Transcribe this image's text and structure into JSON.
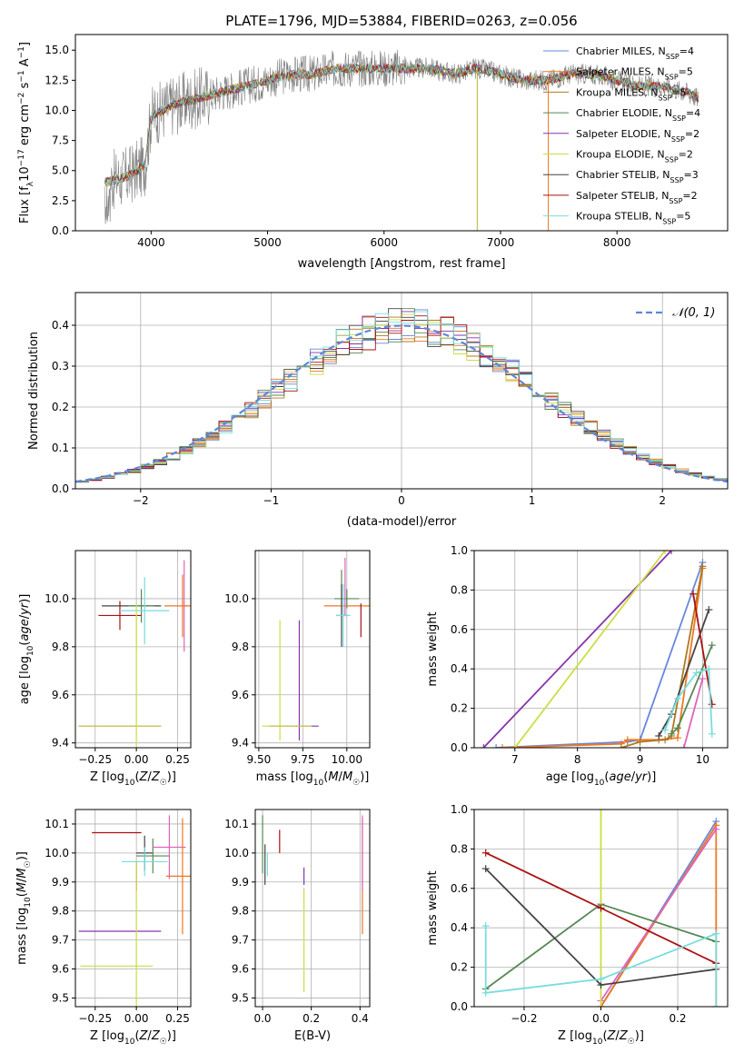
{
  "chart_data": [
    {
      "id": "spectrum",
      "type": "line",
      "title": "PLATE=1796, MJD=53884, FIBERID=0263, z=0.056",
      "xlabel": "wavelength [Angstrom, rest frame]",
      "ylabel": "Flux [f_λ 10^-17 erg cm^-2 s^-1 A^-1]",
      "xlim": [
        3350,
        8950
      ],
      "ylim": [
        0,
        16.3
      ],
      "xticks": [
        4000,
        5000,
        6000,
        7000,
        8000
      ],
      "yticks": [
        0.0,
        2.5,
        5.0,
        7.5,
        10.0,
        12.5,
        15.0
      ],
      "legend_position": "top-right",
      "legend": [
        {
          "name": "Chabrier MILES, N_SSP=4",
          "color": "#6688dd"
        },
        {
          "name": "Salpeter MILES, N_SSP=5",
          "color": "#ee7722"
        },
        {
          "name": "Kroupa MILES, N_SSP=5",
          "color": "#b07820"
        },
        {
          "name": "Chabrier ELODIE, N_SSP=4",
          "color": "#558855"
        },
        {
          "name": "Salpeter ELODIE, N_SSP=2",
          "color": "#8833aa"
        },
        {
          "name": "Kroupa ELODIE, N_SSP=2",
          "color": "#ccdd44"
        },
        {
          "name": "Chabrier STELIB, N_SSP=3",
          "color": "#444444"
        },
        {
          "name": "Salpeter STELIB, N_SSP=2",
          "color": "#aa1111"
        },
        {
          "name": "Kroupa STELIB, N_SSP=5",
          "color": "#77dddd"
        }
      ],
      "data_color": "#808080",
      "model_envelope": {
        "x": [
          3600,
          3800,
          3950,
          4000,
          4200,
          4400,
          4600,
          4800,
          5000,
          5200,
          5400,
          5600,
          5800,
          6000,
          6200,
          6400,
          6600,
          6800,
          7000,
          7200,
          7400,
          7600,
          7800,
          8000,
          8200,
          8400,
          8600,
          8700
        ],
        "y": [
          4.0,
          4.5,
          5.5,
          9.5,
          10.5,
          11.0,
          11.5,
          12.0,
          12.5,
          13.0,
          13.0,
          13.5,
          13.5,
          13.5,
          13.5,
          13.5,
          13.0,
          13.5,
          13.0,
          12.5,
          12.5,
          13.0,
          13.0,
          12.5,
          12.0,
          12.0,
          11.5,
          11.0
        ]
      }
    },
    {
      "id": "residuals",
      "type": "histogram",
      "xlabel": "(data-model)/error",
      "ylabel": "Normed distribution",
      "xlim": [
        -2.5,
        2.5
      ],
      "ylim": [
        0,
        0.48
      ],
      "xticks": [
        -2,
        -1,
        0,
        1,
        2
      ],
      "yticks": [
        0.0,
        0.1,
        0.2,
        0.3,
        0.4
      ],
      "grid": true,
      "legend_position": "top-right",
      "reference_curve": {
        "name": "𝒩(0, 1)",
        "color": "#5b88d8"
      },
      "bins": 50
    },
    {
      "id": "age-vs-Z",
      "type": "scatter",
      "xlabel": "Z [log10(Z/Z_☉)]",
      "ylabel": "age  [log10(age/yr)]",
      "xlim": [
        -0.37,
        0.33
      ],
      "ylim": [
        9.38,
        10.2
      ],
      "xticks": [
        -0.25,
        0.0,
        0.25
      ],
      "yticks": [
        9.4,
        9.6,
        9.8,
        10.0
      ],
      "grid": true,
      "points": [
        {
          "x": -0.03,
          "y": 9.97,
          "xerr": 0.18,
          "yerr": 0.0,
          "color": "#444444"
        },
        {
          "x": 0.03,
          "y": 9.97,
          "xerr": 0.08,
          "yerr": 0.07,
          "color": "#558855"
        },
        {
          "x": -0.1,
          "y": 9.93,
          "xerr": 0.13,
          "yerr": 0.06,
          "color": "#aa1111"
        },
        {
          "x": 0.29,
          "y": 9.97,
          "xerr": 0.02,
          "yerr": 0.19,
          "color": "#dd66bb"
        },
        {
          "x": 0.28,
          "y": 9.97,
          "xerr": 0.11,
          "yerr": 0.13,
          "color": "#ee7722"
        },
        {
          "x": 0.05,
          "y": 9.95,
          "xerr": 0.15,
          "yerr": 0.14,
          "color": "#77dddd"
        },
        {
          "x": 0.0,
          "y": 9.88,
          "xerr": 0.0,
          "yerr": 0.1,
          "color": "#ccdd44"
        },
        {
          "x": -0.1,
          "y": 9.47,
          "xerr": 0.25,
          "yerr": 0.0,
          "color": "#8833aa"
        },
        {
          "x": -0.1,
          "y": 9.47,
          "xerr": 0.25,
          "yerr": 0.0,
          "color": "#ccdd44"
        },
        {
          "x": 0.0,
          "y": 9.65,
          "xerr": 0.0,
          "yerr": 0.28,
          "color": "#ccdd44"
        }
      ]
    },
    {
      "id": "age-vs-mass",
      "type": "scatter",
      "xlabel": "mass [log10(M/M_☉)]",
      "ylabel": "",
      "xlim": [
        9.48,
        10.13
      ],
      "ylim": [
        9.38,
        10.2
      ],
      "xticks": [
        9.5,
        9.75,
        10.0
      ],
      "yticks": [
        9.4,
        9.6,
        9.8,
        10.0
      ],
      "grid": true,
      "points": [
        {
          "x": 9.97,
          "y": 10.03,
          "xerr": 0.0,
          "yerr": 0.09,
          "color": "#558855"
        },
        {
          "x": 10.0,
          "y": 10.0,
          "xerr": 0.07,
          "yerr": 0.04,
          "color": "#558855"
        },
        {
          "x": 10.0,
          "y": 9.97,
          "xerr": 0.13,
          "yerr": 0.0,
          "color": "#ee7722"
        },
        {
          "x": 9.99,
          "y": 10.05,
          "xerr": 0.0,
          "yerr": 0.12,
          "color": "#dd66bb"
        },
        {
          "x": 10.08,
          "y": 9.91,
          "xerr": 0.0,
          "yerr": 0.07,
          "color": "#aa1111"
        },
        {
          "x": 9.97,
          "y": 9.93,
          "xerr": 0.03,
          "yerr": 0.13,
          "color": "#444444"
        },
        {
          "x": 9.98,
          "y": 9.93,
          "xerr": 0.04,
          "yerr": 0.13,
          "color": "#77dddd"
        },
        {
          "x": 9.73,
          "y": 9.66,
          "xerr": 0.0,
          "yerr": 0.25,
          "color": "#8833aa"
        },
        {
          "x": 9.62,
          "y": 9.66,
          "xerr": 0.0,
          "yerr": 0.25,
          "color": "#ccdd44"
        },
        {
          "x": 9.7,
          "y": 9.47,
          "xerr": 0.14,
          "yerr": 0.0,
          "color": "#8833aa"
        },
        {
          "x": 9.66,
          "y": 9.47,
          "xerr": 0.14,
          "yerr": 0.0,
          "color": "#ccdd44"
        }
      ]
    },
    {
      "id": "weight-vs-age",
      "type": "line",
      "xlabel": "age  [log10(age/yr)]",
      "ylabel": "mass weight",
      "xlim": [
        6.35,
        10.4
      ],
      "ylim": [
        0,
        1.0
      ],
      "xticks": [
        7,
        8,
        9,
        10
      ],
      "yticks": [
        0.0,
        0.2,
        0.4,
        0.6,
        0.8,
        1.0
      ],
      "grid": true,
      "series": [
        {
          "color": "#6688dd",
          "x": [
            6.7,
            8.8,
            9.0,
            10.0
          ],
          "y": [
            0.0,
            0.03,
            0.04,
            0.94
          ]
        },
        {
          "color": "#ee7722",
          "x": [
            6.8,
            8.7,
            8.8,
            9.3,
            9.6,
            10.0
          ],
          "y": [
            0.0,
            0.02,
            0.04,
            0.04,
            0.05,
            0.91
          ]
        },
        {
          "color": "#b07820",
          "x": [
            8.7,
            9.0,
            9.4,
            9.5,
            10.0
          ],
          "y": [
            0.0,
            0.03,
            0.04,
            0.06,
            0.92
          ]
        },
        {
          "color": "#558855",
          "x": [
            9.5,
            9.6,
            10.15
          ],
          "y": [
            0.07,
            0.1,
            0.52
          ]
        },
        {
          "color": "#8833aa",
          "x": [
            6.5,
            9.5
          ],
          "y": [
            0.0,
            1.0
          ]
        },
        {
          "color": "#ccdd44",
          "x": [
            7.0,
            9.4
          ],
          "y": [
            0.0,
            1.0
          ]
        },
        {
          "color": "#444444",
          "x": [
            9.3,
            9.5,
            10.1
          ],
          "y": [
            0.06,
            0.17,
            0.7
          ]
        },
        {
          "color": "#aa1111",
          "x": [
            9.85,
            10.15
          ],
          "y": [
            0.78,
            0.22
          ]
        },
        {
          "color": "#dd66bb",
          "x": [
            9.7,
            10.0
          ],
          "y": [
            0.0,
            0.35
          ]
        },
        {
          "color": "#77dddd",
          "x": [
            9.4,
            9.6,
            9.9,
            10.1,
            10.15
          ],
          "y": [
            0.09,
            0.25,
            0.38,
            0.4,
            0.07
          ]
        }
      ]
    },
    {
      "id": "mass-vs-Z",
      "type": "scatter",
      "xlabel": "Z [log10(Z/Z_☉)]",
      "ylabel": "mass [log10(M/M_☉)]",
      "xlim": [
        -0.37,
        0.33
      ],
      "ylim": [
        9.47,
        10.15
      ],
      "xticks": [
        -0.25,
        0.0,
        0.25
      ],
      "yticks": [
        9.5,
        9.6,
        9.7,
        9.8,
        9.9,
        10.0,
        10.1
      ],
      "grid": true,
      "points": [
        {
          "x": -0.12,
          "y": 10.07,
          "xerr": 0.15,
          "yerr": 0.0,
          "color": "#aa1111"
        },
        {
          "x": 0.05,
          "y": 10.0,
          "xerr": 0.05,
          "yerr": 0.06,
          "color": "#444444"
        },
        {
          "x": 0.1,
          "y": 9.99,
          "xerr": 0.1,
          "yerr": 0.06,
          "color": "#558855"
        },
        {
          "x": 0.2,
          "y": 10.02,
          "xerr": 0.1,
          "yerr": 0.11,
          "color": "#dd66bb"
        },
        {
          "x": 0.28,
          "y": 9.92,
          "xerr": 0.1,
          "yerr": 0.2,
          "color": "#ee7722"
        },
        {
          "x": 0.05,
          "y": 9.97,
          "xerr": 0.14,
          "yerr": 0.05,
          "color": "#77dddd"
        },
        {
          "x": 0.0,
          "y": 9.92,
          "xerr": 0.0,
          "yerr": 0.05,
          "color": "#8833aa"
        },
        {
          "x": -0.1,
          "y": 9.73,
          "xerr": 0.25,
          "yerr": 0.0,
          "color": "#8833aa"
        },
        {
          "x": 0.0,
          "y": 9.72,
          "xerr": 0.0,
          "yerr": 0.25,
          "color": "#ccdd44"
        },
        {
          "x": -0.12,
          "y": 9.61,
          "xerr": 0.22,
          "yerr": 0.0,
          "color": "#ccdd44"
        }
      ]
    },
    {
      "id": "mass-vs-EBV",
      "type": "scatter",
      "xlabel": "E(B-V)",
      "ylabel": "",
      "xlim": [
        -0.03,
        0.44
      ],
      "ylim": [
        9.47,
        10.15
      ],
      "xticks": [
        0.0,
        0.2,
        0.4
      ],
      "yticks": [
        9.5,
        9.6,
        9.7,
        9.8,
        9.9,
        10.0,
        10.1
      ],
      "grid": true,
      "points": [
        {
          "x": 0.0,
          "y": 10.03,
          "xerr": 0.0,
          "yerr": 0.1,
          "color": "#558855"
        },
        {
          "x": 0.01,
          "y": 9.96,
          "xerr": 0.0,
          "yerr": 0.07,
          "color": "#444444"
        },
        {
          "x": 0.02,
          "y": 9.96,
          "xerr": 0.0,
          "yerr": 0.04,
          "color": "#77dddd"
        },
        {
          "x": 0.07,
          "y": 10.04,
          "xerr": 0.0,
          "yerr": 0.04,
          "color": "#aa1111"
        },
        {
          "x": 0.17,
          "y": 9.92,
          "xerr": 0.0,
          "yerr": 0.03,
          "color": "#8833aa"
        },
        {
          "x": 0.17,
          "y": 9.7,
          "xerr": 0.0,
          "yerr": 0.18,
          "color": "#ccdd44"
        },
        {
          "x": 0.41,
          "y": 9.92,
          "xerr": 0.0,
          "yerr": 0.2,
          "color": "#ee7722"
        },
        {
          "x": 0.41,
          "y": 10.0,
          "xerr": 0.0,
          "yerr": 0.13,
          "color": "#dd66bb"
        }
      ]
    },
    {
      "id": "weight-vs-Z",
      "type": "line",
      "xlabel": "Z [log10(Z/Z_☉)]",
      "ylabel": "mass weight",
      "xlim": [
        -0.33,
        0.33
      ],
      "ylim": [
        0,
        1.0
      ],
      "xticks": [
        -0.2,
        0.0,
        0.2
      ],
      "yticks": [
        0.0,
        0.2,
        0.4,
        0.6,
        0.8,
        1.0
      ],
      "grid": true,
      "series": [
        {
          "color": "#6688dd",
          "x": [
            0.0,
            0.3
          ],
          "y": [
            0.0,
            0.94
          ]
        },
        {
          "color": "#ee7722",
          "x": [
            0.0,
            0.3,
            0.3
          ],
          "y": [
            0.0,
            0.92,
            0.0
          ]
        },
        {
          "color": "#dd66bb",
          "x": [
            0.0,
            0.3
          ],
          "y": [
            0.03,
            0.9
          ]
        },
        {
          "color": "#558855",
          "x": [
            -0.3,
            0.0,
            0.3
          ],
          "y": [
            0.09,
            0.52,
            0.33
          ]
        },
        {
          "color": "#ccdd44",
          "x": [
            0.0,
            0.0
          ],
          "y": [
            0.0,
            1.0
          ]
        },
        {
          "color": "#444444",
          "x": [
            -0.3,
            0.0,
            0.3
          ],
          "y": [
            0.7,
            0.11,
            0.19
          ]
        },
        {
          "color": "#aa1111",
          "x": [
            -0.3,
            0.0,
            0.3
          ],
          "y": [
            0.78,
            0.5,
            0.22
          ]
        },
        {
          "color": "#77dddd",
          "x": [
            -0.3,
            -0.3,
            0.0,
            0.3,
            0.3
          ],
          "y": [
            0.41,
            0.07,
            0.14,
            0.37,
            0.0
          ]
        }
      ]
    }
  ]
}
